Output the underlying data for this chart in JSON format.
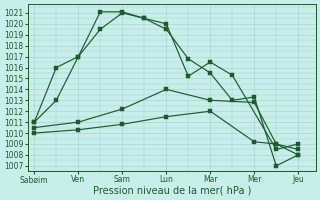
{
  "background_color": "#c8eeea",
  "grid_color": "#aacccc",
  "line_color": "#1a5c2a",
  "xlabel": "Pression niveau de la mer( hPa )",
  "ylim": [
    1006.5,
    1021.8
  ],
  "yticks": [
    1007,
    1008,
    1009,
    1010,
    1011,
    1012,
    1013,
    1014,
    1015,
    1016,
    1017,
    1018,
    1019,
    1020,
    1021
  ],
  "xtick_labels": [
    "Sabøim",
    "Ven",
    "Sam",
    "Lun",
    "Mar",
    "Mer",
    "Jeu"
  ],
  "xtick_positions": [
    0,
    1,
    2,
    3,
    4,
    5,
    6
  ],
  "xlim": [
    -0.15,
    6.4
  ],
  "line1_x": [
    0,
    0.5,
    1.0,
    1.5,
    2.0,
    2.5,
    3.0,
    3.5,
    4.0,
    4.5,
    5.5,
    6.0
  ],
  "line1_y": [
    1011.0,
    1016.0,
    1017.0,
    1021.1,
    1021.1,
    1020.5,
    1020.0,
    1015.2,
    1016.5,
    1015.3,
    1008.5,
    1009.0
  ],
  "line2_x": [
    0,
    0.5,
    1.0,
    1.5,
    2.0,
    2.5,
    3.0,
    3.5,
    4.0,
    4.5,
    5.0,
    5.5,
    6.0
  ],
  "line2_y": [
    1011.0,
    1013.0,
    1017.0,
    1019.5,
    1021.0,
    1020.5,
    1019.5,
    1016.8,
    1015.5,
    1013.0,
    1013.3,
    1007.0,
    1008.0
  ],
  "line3_x": [
    0,
    1.0,
    2.0,
    3.0,
    4.0,
    5.0,
    5.5,
    6.0
  ],
  "line3_y": [
    1010.5,
    1011.0,
    1012.2,
    1014.0,
    1013.0,
    1012.8,
    1009.0,
    1008.0
  ],
  "line4_x": [
    0,
    1.0,
    2.0,
    3.0,
    4.0,
    5.0,
    5.5,
    6.0
  ],
  "line4_y": [
    1010.0,
    1010.3,
    1010.8,
    1011.5,
    1012.0,
    1009.2,
    1009.0,
    1008.5
  ],
  "marker_size": 2.2,
  "linewidth": 0.85,
  "tick_fontsize": 5.5,
  "xlabel_fontsize": 7.0
}
